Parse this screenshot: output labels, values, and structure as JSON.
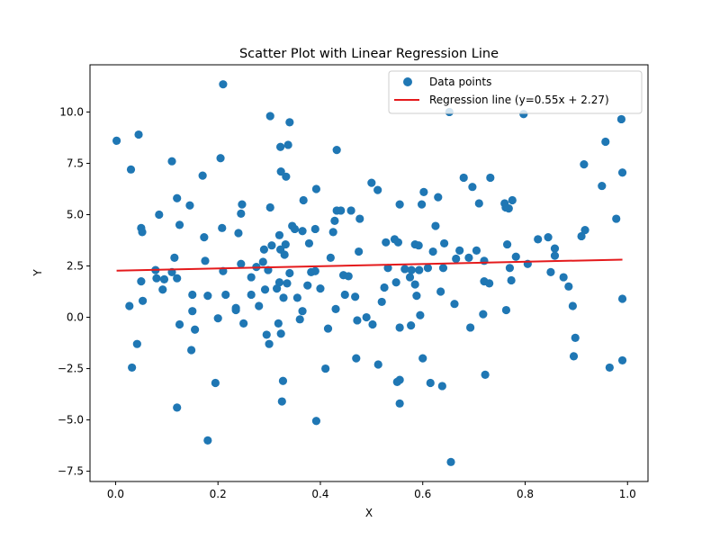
{
  "chart_data": {
    "type": "scatter",
    "title": "Scatter Plot with Linear Regression Line",
    "xlabel": "X",
    "ylabel": "Y",
    "xlim": [
      -0.05,
      1.04
    ],
    "ylim": [
      -8.0,
      12.3
    ],
    "xticks": [
      0.0,
      0.2,
      0.4,
      0.6,
      0.8,
      1.0
    ],
    "xtick_labels": [
      "0.0",
      "0.2",
      "0.4",
      "0.6",
      "0.8",
      "1.0"
    ],
    "yticks": [
      -7.5,
      -5.0,
      -2.5,
      0.0,
      2.5,
      5.0,
      7.5,
      10.0
    ],
    "ytick_labels": [
      "−7.5",
      "−5.0",
      "−2.5",
      "0.0",
      "2.5",
      "5.0",
      "7.5",
      "10.0"
    ],
    "grid": false,
    "legend_position": "top-right",
    "series": [
      {
        "name": "Data points",
        "kind": "scatter",
        "color": "#1f77b4",
        "points": [
          [
            0.002,
            8.6
          ],
          [
            0.03,
            7.2
          ],
          [
            0.045,
            8.9
          ],
          [
            0.05,
            4.35
          ],
          [
            0.052,
            4.15
          ],
          [
            0.05,
            1.75
          ],
          [
            0.053,
            0.8
          ],
          [
            0.027,
            0.55
          ],
          [
            0.042,
            -1.3
          ],
          [
            0.032,
            -2.45
          ],
          [
            0.085,
            5.0
          ],
          [
            0.11,
            7.6
          ],
          [
            0.12,
            5.8
          ],
          [
            0.125,
            4.5
          ],
          [
            0.145,
            5.45
          ],
          [
            0.115,
            2.9
          ],
          [
            0.11,
            2.2
          ],
          [
            0.078,
            2.3
          ],
          [
            0.08,
            1.9
          ],
          [
            0.095,
            1.85
          ],
          [
            0.092,
            1.35
          ],
          [
            0.12,
            1.9
          ],
          [
            0.15,
            1.1
          ],
          [
            0.15,
            0.3
          ],
          [
            0.125,
            -0.35
          ],
          [
            0.155,
            -0.6
          ],
          [
            0.148,
            -1.6
          ],
          [
            0.12,
            -4.4
          ],
          [
            0.17,
            6.9
          ],
          [
            0.173,
            3.9
          ],
          [
            0.175,
            2.75
          ],
          [
            0.18,
            1.05
          ],
          [
            0.2,
            -0.05
          ],
          [
            0.195,
            -3.2
          ],
          [
            0.18,
            -6.0
          ],
          [
            0.205,
            7.75
          ],
          [
            0.208,
            4.35
          ],
          [
            0.21,
            11.35
          ],
          [
            0.21,
            2.25
          ],
          [
            0.215,
            1.1
          ],
          [
            0.235,
            0.45
          ],
          [
            0.235,
            0.35
          ],
          [
            0.24,
            4.1
          ],
          [
            0.245,
            2.6
          ],
          [
            0.245,
            5.05
          ],
          [
            0.247,
            5.5
          ],
          [
            0.25,
            -0.3
          ],
          [
            0.265,
            1.1
          ],
          [
            0.265,
            1.95
          ],
          [
            0.275,
            2.45
          ],
          [
            0.28,
            0.55
          ],
          [
            0.288,
            2.7
          ],
          [
            0.29,
            3.3
          ],
          [
            0.292,
            1.35
          ],
          [
            0.295,
            -0.85
          ],
          [
            0.298,
            2.3
          ],
          [
            0.3,
            -1.3
          ],
          [
            0.302,
            5.35
          ],
          [
            0.302,
            9.8
          ],
          [
            0.305,
            3.5
          ],
          [
            0.315,
            1.4
          ],
          [
            0.318,
            -0.3
          ],
          [
            0.32,
            1.7
          ],
          [
            0.32,
            4.0
          ],
          [
            0.322,
            3.3
          ],
          [
            0.322,
            8.3
          ],
          [
            0.323,
            7.1
          ],
          [
            0.323,
            -0.8
          ],
          [
            0.325,
            -4.1
          ],
          [
            0.327,
            -3.1
          ],
          [
            0.328,
            0.95
          ],
          [
            0.33,
            3.05
          ],
          [
            0.332,
            3.55
          ],
          [
            0.333,
            6.85
          ],
          [
            0.335,
            1.65
          ],
          [
            0.337,
            8.4
          ],
          [
            0.34,
            9.5
          ],
          [
            0.34,
            2.15
          ],
          [
            0.345,
            4.45
          ],
          [
            0.35,
            4.3
          ],
          [
            0.355,
            0.95
          ],
          [
            0.36,
            -0.1
          ],
          [
            0.365,
            0.3
          ],
          [
            0.365,
            4.2
          ],
          [
            0.367,
            5.7
          ],
          [
            0.375,
            1.55
          ],
          [
            0.378,
            3.6
          ],
          [
            0.382,
            2.2
          ],
          [
            0.39,
            2.25
          ],
          [
            0.39,
            4.3
          ],
          [
            0.392,
            6.25
          ],
          [
            0.392,
            -5.05
          ],
          [
            0.4,
            1.4
          ],
          [
            0.41,
            -2.5
          ],
          [
            0.415,
            -0.55
          ],
          [
            0.42,
            2.9
          ],
          [
            0.425,
            4.15
          ],
          [
            0.428,
            4.7
          ],
          [
            0.43,
            0.4
          ],
          [
            0.432,
            8.15
          ],
          [
            0.432,
            5.2
          ],
          [
            0.44,
            5.2
          ],
          [
            0.445,
            2.05
          ],
          [
            0.448,
            1.1
          ],
          [
            0.455,
            2.0
          ],
          [
            0.46,
            5.2
          ],
          [
            0.468,
            1.0
          ],
          [
            0.47,
            -2.0
          ],
          [
            0.472,
            -0.15
          ],
          [
            0.475,
            3.2
          ],
          [
            0.477,
            4.8
          ],
          [
            0.49,
            0.0
          ],
          [
            0.5,
            6.55
          ],
          [
            0.502,
            -0.35
          ],
          [
            0.512,
            6.2
          ],
          [
            0.513,
            -2.3
          ],
          [
            0.52,
            0.75
          ],
          [
            0.525,
            1.45
          ],
          [
            0.528,
            3.65
          ],
          [
            0.532,
            2.4
          ],
          [
            0.545,
            3.8
          ],
          [
            0.548,
            1.7
          ],
          [
            0.55,
            -3.15
          ],
          [
            0.552,
            3.65
          ],
          [
            0.555,
            5.5
          ],
          [
            0.555,
            -3.05
          ],
          [
            0.555,
            -0.5
          ],
          [
            0.555,
            -4.2
          ],
          [
            0.565,
            2.35
          ],
          [
            0.575,
            1.95
          ],
          [
            0.577,
            -0.4
          ],
          [
            0.578,
            2.3
          ],
          [
            0.585,
            3.55
          ],
          [
            0.585,
            1.6
          ],
          [
            0.588,
            1.05
          ],
          [
            0.592,
            3.5
          ],
          [
            0.593,
            2.3
          ],
          [
            0.595,
            0.1
          ],
          [
            0.598,
            5.5
          ],
          [
            0.6,
            -2.0
          ],
          [
            0.602,
            6.1
          ],
          [
            0.61,
            2.4
          ],
          [
            0.615,
            -3.2
          ],
          [
            0.62,
            3.2
          ],
          [
            0.625,
            4.45
          ],
          [
            0.63,
            5.85
          ],
          [
            0.635,
            1.25
          ],
          [
            0.638,
            -3.35
          ],
          [
            0.64,
            2.4
          ],
          [
            0.642,
            3.6
          ],
          [
            0.652,
            10.0
          ],
          [
            0.655,
            -7.05
          ],
          [
            0.662,
            0.65
          ],
          [
            0.665,
            2.85
          ],
          [
            0.672,
            3.25
          ],
          [
            0.68,
            6.8
          ],
          [
            0.69,
            2.9
          ],
          [
            0.693,
            -0.5
          ],
          [
            0.697,
            6.35
          ],
          [
            0.705,
            3.25
          ],
          [
            0.71,
            5.55
          ],
          [
            0.718,
            0.15
          ],
          [
            0.72,
            2.75
          ],
          [
            0.72,
            1.75
          ],
          [
            0.722,
            -2.8
          ],
          [
            0.73,
            1.65
          ],
          [
            0.732,
            6.8
          ],
          [
            0.76,
            5.55
          ],
          [
            0.762,
            5.35
          ],
          [
            0.763,
            0.35
          ],
          [
            0.765,
            3.55
          ],
          [
            0.768,
            5.3
          ],
          [
            0.77,
            2.4
          ],
          [
            0.773,
            1.8
          ],
          [
            0.775,
            5.7
          ],
          [
            0.782,
            2.95
          ],
          [
            0.797,
            9.9
          ],
          [
            0.805,
            2.6
          ],
          [
            0.825,
            3.8
          ],
          [
            0.845,
            3.9
          ],
          [
            0.85,
            2.2
          ],
          [
            0.858,
            3.35
          ],
          [
            0.858,
            3.0
          ],
          [
            0.875,
            1.95
          ],
          [
            0.885,
            1.5
          ],
          [
            0.893,
            0.55
          ],
          [
            0.895,
            -1.9
          ],
          [
            0.898,
            -1.0
          ],
          [
            0.91,
            3.95
          ],
          [
            0.915,
            7.45
          ],
          [
            0.917,
            4.25
          ],
          [
            0.95,
            6.4
          ],
          [
            0.957,
            8.55
          ],
          [
            0.965,
            -2.45
          ],
          [
            0.978,
            4.8
          ],
          [
            0.988,
            9.65
          ],
          [
            0.99,
            7.05
          ],
          [
            0.99,
            0.9
          ],
          [
            0.99,
            -2.1
          ]
        ]
      },
      {
        "name": "Regression line (y=0.55x + 2.27)",
        "kind": "line",
        "color": "#e41a1c",
        "x": [
          0.002,
          0.99
        ],
        "y": [
          2.27,
          2.81
        ]
      }
    ]
  }
}
